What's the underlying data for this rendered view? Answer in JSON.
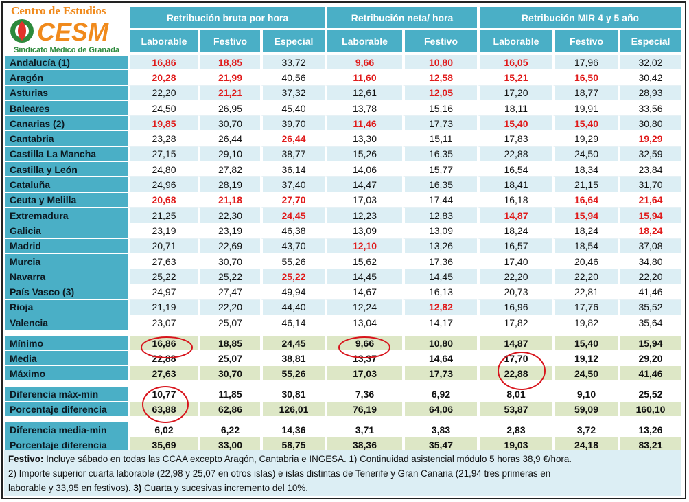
{
  "logo": {
    "top_text": "Centro de Estudios",
    "mark_text": "CESM",
    "bottom_text": "Sindicato Médico de Granada"
  },
  "groups": [
    "Retribución bruta por hora",
    "Retribución neta/ hora",
    "Retribución MIR 4 y 5 año"
  ],
  "subheaders": [
    "Laborable",
    "Festivo",
    "Especial",
    "Laborable",
    "Festivo",
    "Laborable",
    "Festivo",
    "Especial"
  ],
  "rows": [
    {
      "name": "Andalucía (1)",
      "v": [
        "16,86",
        "18,85",
        "33,72",
        "9,66",
        "10,80",
        "16,05",
        "17,96",
        "32,02"
      ],
      "red": [
        0,
        1,
        3,
        4,
        5
      ]
    },
    {
      "name": "Aragón",
      "v": [
        "20,28",
        "21,99",
        "40,56",
        "11,60",
        "12,58",
        "15,21",
        "16,50",
        "30,42"
      ],
      "red": [
        0,
        1,
        3,
        4,
        5,
        6
      ]
    },
    {
      "name": "Asturias",
      "v": [
        "22,20",
        "21,21",
        "37,32",
        "12,61",
        "12,05",
        "17,20",
        "18,77",
        "28,93"
      ],
      "red": [
        1,
        4
      ]
    },
    {
      "name": "Baleares",
      "v": [
        "24,50",
        "26,95",
        "45,40",
        "13,78",
        "15,16",
        "18,11",
        "19,91",
        "33,56"
      ],
      "red": []
    },
    {
      "name": "Canarias (2)",
      "v": [
        "19,85",
        "30,70",
        "39,70",
        "11,46",
        "17,73",
        "15,40",
        "15,40",
        "30,80"
      ],
      "red": [
        0,
        3,
        5,
        6
      ]
    },
    {
      "name": "Cantabria",
      "v": [
        "23,28",
        "26,44",
        "26,44",
        "13,30",
        "15,11",
        "17,83",
        "19,29",
        "19,29"
      ],
      "red": [
        2,
        7
      ]
    },
    {
      "name": "Castilla La Mancha",
      "v": [
        "27,15",
        "29,10",
        "38,77",
        "15,26",
        "16,35",
        "22,88",
        "24,50",
        "32,59"
      ],
      "red": []
    },
    {
      "name": "Castilla y León",
      "v": [
        "24,80",
        "27,82",
        "36,14",
        "14,06",
        "15,77",
        "16,54",
        "18,34",
        "23,84"
      ],
      "red": []
    },
    {
      "name": "Cataluña",
      "v": [
        "24,96",
        "28,19",
        "37,40",
        "14,47",
        "16,35",
        "18,41",
        "21,15",
        "31,70"
      ],
      "red": []
    },
    {
      "name": "Ceuta y Melilla",
      "v": [
        "20,68",
        "21,18",
        "27,70",
        "17,03",
        "17,44",
        "16,18",
        "16,64",
        "21,64"
      ],
      "red": [
        0,
        1,
        2,
        6,
        7
      ]
    },
    {
      "name": "Extremadura",
      "v": [
        "21,25",
        "22,30",
        "24,45",
        "12,23",
        "12,83",
        "14,87",
        "15,94",
        "15,94"
      ],
      "red": [
        2,
        5,
        6,
        7
      ]
    },
    {
      "name": "Galicia",
      "v": [
        "23,19",
        "23,19",
        "46,38",
        "13,09",
        "13,09",
        "18,24",
        "18,24",
        "18,24"
      ],
      "red": [
        7
      ]
    },
    {
      "name": "Madrid",
      "v": [
        "20,71",
        "22,69",
        "43,70",
        "12,10",
        "13,26",
        "16,57",
        "18,54",
        "37,08"
      ],
      "red": [
        3
      ]
    },
    {
      "name": "Murcia",
      "v": [
        "27,63",
        "30,70",
        "55,26",
        "15,62",
        "17,36",
        "17,40",
        "20,46",
        "34,80"
      ],
      "red": []
    },
    {
      "name": "Navarra",
      "v": [
        "25,22",
        "25,22",
        "25,22",
        "14,45",
        "14,45",
        "22,20",
        "22,20",
        "22,20"
      ],
      "red": [
        2
      ]
    },
    {
      "name": "País Vasco (3)",
      "v": [
        "24,97",
        "27,47",
        "49,94",
        "14,67",
        "16,13",
        "20,73",
        "22,81",
        "41,46"
      ],
      "red": []
    },
    {
      "name": "Rioja",
      "v": [
        "21,19",
        "22,20",
        "44,40",
        "12,24",
        "12,82",
        "16,96",
        "17,76",
        "35,52"
      ],
      "red": [
        4
      ]
    },
    {
      "name": "Valencia",
      "v": [
        "23,07",
        "25,07",
        "46,14",
        "13,04",
        "14,17",
        "17,82",
        "19,82",
        "35,64"
      ],
      "red": []
    }
  ],
  "stats1": [
    {
      "name": "Mínimo",
      "v": [
        "16,86",
        "18,85",
        "24,45",
        "9,66",
        "10,80",
        "14,87",
        "15,40",
        "15,94"
      ]
    },
    {
      "name": "Media",
      "v": [
        "22,88",
        "25,07",
        "38,81",
        "13,37",
        "14,64",
        "17,70",
        "19,12",
        "29,20"
      ]
    },
    {
      "name": "Máximo",
      "v": [
        "27,63",
        "30,70",
        "55,26",
        "17,03",
        "17,73",
        "22,88",
        "24,50",
        "41,46"
      ]
    }
  ],
  "stats2": [
    {
      "name": "Diferencia máx-min",
      "v": [
        "10,77",
        "11,85",
        "30,81",
        "7,36",
        "6,92",
        "8,01",
        "9,10",
        "25,52"
      ]
    },
    {
      "name": "Porcentaje diferencia",
      "v": [
        "63,88",
        "62,86",
        "126,01",
        "76,19",
        "64,06",
        "53,87",
        "59,09",
        "160,10"
      ]
    }
  ],
  "stats3": [
    {
      "name": "Diferencia media-min",
      "v": [
        "6,02",
        "6,22",
        "14,36",
        "3,71",
        "3,83",
        "2,83",
        "3,72",
        "13,26"
      ]
    },
    {
      "name": "Porcentaje diferencia",
      "v": [
        "35,69",
        "33,00",
        "58,75",
        "38,36",
        "35,47",
        "19,03",
        "24,18",
        "83,21"
      ]
    }
  ],
  "footnote": {
    "label": "Festivo:",
    "line1": " Incluye sábado en todas las CCAA excepto Aragón, Cantabria e INGESA.   1)  Continuidad asistencial módulo 5 horas 38,9 €/hora.",
    "line2": "2)  Importe superior cuarta laborable (22,98 y 25,07 en otros islas) e islas distintas de Tenerife y Gran Canaria (21,94 tres primeras en",
    "line3a": "laborable y 33,95 en festivos). ",
    "label3": "3)",
    "line3b": " Cuarta y sucesivas incremento del 10%."
  },
  "colors": {
    "header": "#4aafc6",
    "alt_row": "#dceef4",
    "stat_row": "#dde7c6",
    "highlight": "#e01b1b"
  }
}
